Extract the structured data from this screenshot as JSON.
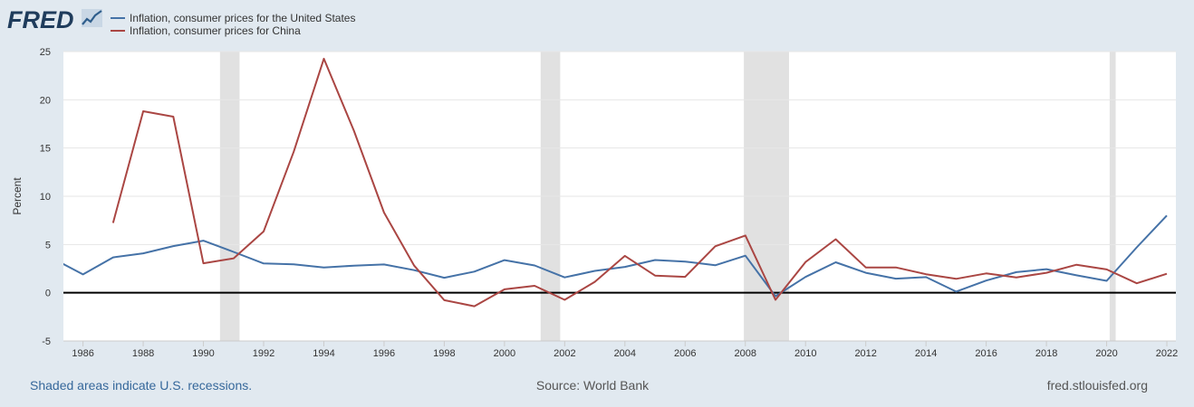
{
  "brand": {
    "logo_text": "FRED",
    "logo_icon": "fred-chart-line-icon"
  },
  "legend": {
    "items": [
      {
        "label": "Inflation, consumer prices for the United States",
        "color": "#4572a7"
      },
      {
        "label": "Inflation, consumer prices for China",
        "color": "#aa4643"
      }
    ]
  },
  "footer": {
    "recession_note": "Shaded areas indicate U.S. recessions.",
    "source": "Source: World Bank",
    "site": "fred.stlouisfed.org"
  },
  "colors": {
    "background": "#e1e9f0",
    "plot_background": "#ffffff",
    "recession_shade": "#e1e1e1",
    "grid": "#e6e6e6",
    "zero_line": "#000000",
    "link_blue": "#36689b"
  },
  "chart_data": {
    "type": "line",
    "ylabel": "Percent",
    "xlabel": "",
    "ylim": [
      -5,
      25
    ],
    "xlim": [
      1985.35,
      2022.3
    ],
    "y_ticks": [
      -5,
      0,
      5,
      10,
      15,
      20,
      25
    ],
    "x_ticks": [
      1986,
      1988,
      1990,
      1992,
      1994,
      1996,
      1998,
      2000,
      2002,
      2004,
      2006,
      2008,
      2010,
      2012,
      2014,
      2016,
      2018,
      2020,
      2022
    ],
    "grid": true,
    "legend_position": "top-left",
    "recessions": [
      [
        1990.55,
        1991.2
      ],
      [
        2001.2,
        2001.85
      ],
      [
        2007.95,
        2009.45
      ],
      [
        2020.1,
        2020.3
      ]
    ],
    "series": [
      {
        "name": "Inflation, consumer prices for the United States",
        "color": "#4572a7",
        "x": [
          1985,
          1986,
          1987,
          1988,
          1989,
          1990,
          1991,
          1992,
          1993,
          1994,
          1995,
          1996,
          1997,
          1998,
          1999,
          2000,
          2001,
          2002,
          2003,
          2004,
          2005,
          2006,
          2007,
          2008,
          2009,
          2010,
          2011,
          2012,
          2013,
          2014,
          2015,
          2016,
          2017,
          2018,
          2019,
          2020,
          2021,
          2022
        ],
        "values": [
          3.55,
          1.9,
          3.66,
          4.08,
          4.83,
          5.4,
          4.23,
          3.03,
          2.95,
          2.61,
          2.81,
          2.93,
          2.34,
          1.55,
          2.19,
          3.38,
          2.83,
          1.59,
          2.27,
          2.68,
          3.39,
          3.23,
          2.85,
          3.84,
          -0.36,
          1.64,
          3.16,
          2.07,
          1.46,
          1.62,
          0.12,
          1.26,
          2.13,
          2.44,
          1.81,
          1.23,
          4.7,
          8.0
        ]
      },
      {
        "name": "Inflation, consumer prices for China",
        "color": "#aa4643",
        "x": [
          1987,
          1988,
          1989,
          1990,
          1991,
          1992,
          1993,
          1994,
          1995,
          1996,
          1997,
          1998,
          1999,
          2000,
          2001,
          2002,
          2003,
          2004,
          2005,
          2006,
          2007,
          2008,
          2009,
          2010,
          2011,
          2012,
          2013,
          2014,
          2015,
          2016,
          2017,
          2018,
          2019,
          2020,
          2021,
          2022
        ],
        "values": [
          7.23,
          18.81,
          18.25,
          3.05,
          3.56,
          6.35,
          14.61,
          24.26,
          16.79,
          8.31,
          2.81,
          -0.77,
          -1.4,
          0.35,
          0.72,
          -0.73,
          1.13,
          3.82,
          1.78,
          1.65,
          4.82,
          5.93,
          -0.73,
          3.18,
          5.55,
          2.62,
          2.62,
          1.92,
          1.44,
          2.0,
          1.59,
          2.07,
          2.9,
          2.42,
          0.98,
          1.97
        ]
      }
    ]
  }
}
